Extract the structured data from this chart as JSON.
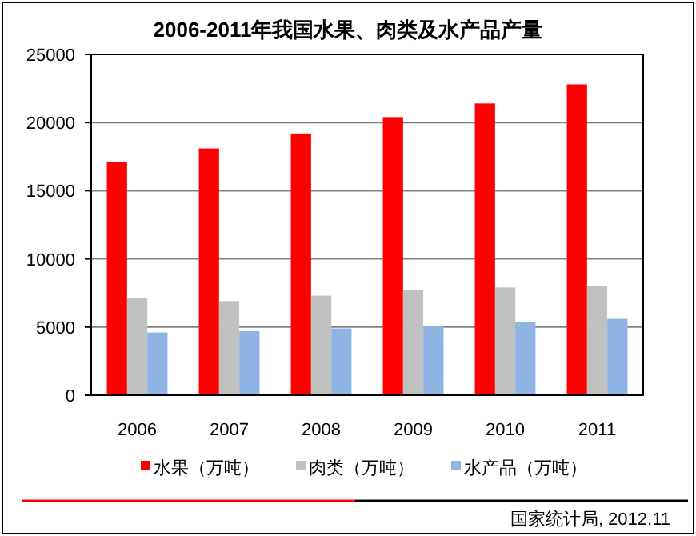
{
  "chart_data": {
    "type": "bar",
    "title": "2006-2011年我国水果、肉类及水产品产量",
    "categories": [
      "2006",
      "2007",
      "2008",
      "2009",
      "2010",
      "2011"
    ],
    "series": [
      {
        "name": "水果（万吨）",
        "color": "#ff0000",
        "values": [
          17100,
          18100,
          19200,
          20400,
          21400,
          22800
        ]
      },
      {
        "name": "肉类（万吨）",
        "color": "#c0c0c0",
        "values": [
          7100,
          6900,
          7300,
          7700,
          7900,
          8000
        ]
      },
      {
        "name": "水产品（万吨）",
        "color": "#8db4e2",
        "values": [
          4600,
          4700,
          4900,
          5100,
          5400,
          5600
        ]
      }
    ],
    "ylim": [
      0,
      25000
    ],
    "yticks": [
      0,
      5000,
      10000,
      15000,
      20000,
      25000
    ],
    "grid": "y",
    "legend": "bottom",
    "annotations": [
      "国家统计局, 2012.11"
    ]
  }
}
